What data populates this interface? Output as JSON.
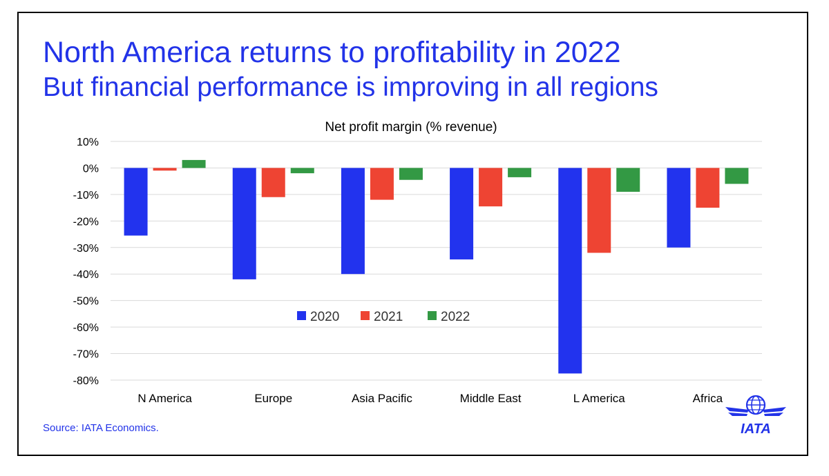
{
  "slide": {
    "title": "North America returns to profitability in 2022",
    "subtitle": "But financial performance is improving in all regions",
    "source": "Source: IATA Economics.",
    "logo_text": "IATA"
  },
  "chart_data": {
    "type": "bar",
    "title": "Net profit margin (% revenue)",
    "xlabel": "",
    "ylabel": "",
    "categories": [
      "N America",
      "Europe",
      "Asia Pacific",
      "Middle East",
      "L America",
      "Africa"
    ],
    "series": [
      {
        "name": "2020",
        "color": "#2233ee",
        "values": [
          -25.5,
          -42.0,
          -40.0,
          -34.5,
          -77.5,
          -30.0
        ]
      },
      {
        "name": "2021",
        "color": "#ee4433",
        "values": [
          -1.0,
          -11.0,
          -12.0,
          -14.5,
          -32.0,
          -15.0
        ]
      },
      {
        "name": "2022",
        "color": "#339944",
        "values": [
          3.0,
          -2.0,
          -4.5,
          -3.5,
          -9.0,
          -6.0
        ]
      }
    ],
    "ylim": [
      -80,
      10
    ],
    "yticks": [
      10,
      0,
      -10,
      -20,
      -30,
      -40,
      -50,
      -60,
      -70,
      -80
    ],
    "ytick_labels": [
      "10%",
      "0%",
      "-10%",
      "-20%",
      "-30%",
      "-40%",
      "-50%",
      "-60%",
      "-70%",
      "-80%"
    ],
    "grid": true,
    "legend_position": "center"
  }
}
